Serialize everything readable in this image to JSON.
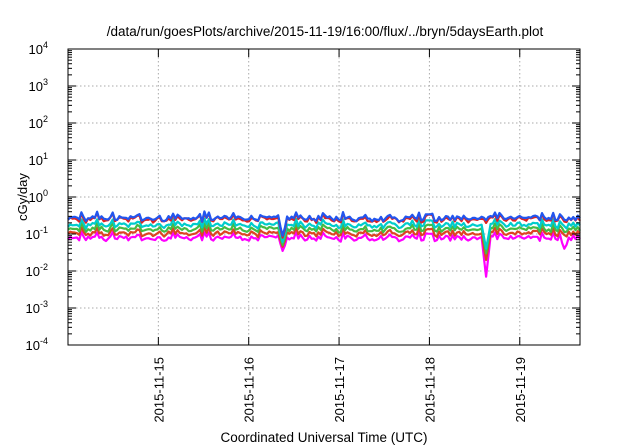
{
  "chart_data": {
    "type": "line",
    "title": "/data/run/goesPlots/archive/2015-11-19/16:00/flux/../bryn/5daysEarth.plot",
    "xlabel": "Coordinated Universal Time (UTC)",
    "ylabel": "cGy/day",
    "y_scale": "log",
    "y_ticks": [
      {
        "value": 0.0001,
        "base": "10",
        "exp": "-4"
      },
      {
        "value": 0.001,
        "base": "10",
        "exp": "-3"
      },
      {
        "value": 0.01,
        "base": "10",
        "exp": "-2"
      },
      {
        "value": 0.1,
        "base": "10",
        "exp": "-1"
      },
      {
        "value": 1,
        "base": "10",
        "exp": "0"
      },
      {
        "value": 10,
        "base": "10",
        "exp": "1"
      },
      {
        "value": 100,
        "base": "10",
        "exp": "2"
      },
      {
        "value": 1000,
        "base": "10",
        "exp": "3"
      },
      {
        "value": 10000,
        "base": "10",
        "exp": "4"
      }
    ],
    "ylim": [
      0.0001,
      10000
    ],
    "xlim": [
      "2015-11-14T00:00",
      "2015-11-19T16:00"
    ],
    "x_ticks": [
      "2015-11-15",
      "2015-11-16",
      "2015-11-17",
      "2015-11-18",
      "2015-11-19"
    ],
    "grid": true,
    "series": [
      {
        "color": "#ff00ff",
        "typical_value": 0.075,
        "dips": [
          {
            "x": "2015-11-16T09:00",
            "value": 0.035
          },
          {
            "x": "2015-11-18T15:00",
            "value": 0.007
          },
          {
            "x": "2015-11-19T12:00",
            "value": 0.04
          }
        ]
      },
      {
        "color": "#dd4422",
        "typical_value": 0.1,
        "dips": [
          {
            "x": "2015-11-16T09:00",
            "value": 0.045
          },
          {
            "x": "2015-11-18T15:00",
            "value": 0.02
          }
        ]
      },
      {
        "color": "#44bb44",
        "typical_value": 0.13,
        "dips": [
          {
            "x": "2015-11-16T09:00",
            "value": 0.05
          },
          {
            "x": "2015-11-18T15:00",
            "value": 0.03
          }
        ]
      },
      {
        "color": "#00cccc",
        "typical_value": 0.17,
        "dips": [
          {
            "x": "2015-11-16T09:00",
            "value": 0.06
          },
          {
            "x": "2015-11-18T15:00",
            "value": 0.04
          }
        ]
      },
      {
        "color": "#dd2222",
        "typical_value": 0.24,
        "dips": [
          {
            "x": "2015-11-16T09:00",
            "value": 0.08
          }
        ]
      },
      {
        "color": "#2255ee",
        "typical_value": 0.26,
        "dips": [
          {
            "x": "2015-11-16T09:00",
            "value": 0.09
          }
        ]
      }
    ]
  }
}
